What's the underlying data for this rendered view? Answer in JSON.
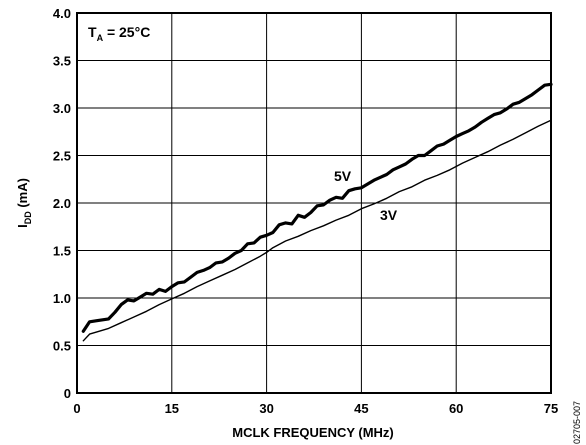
{
  "chart_data": {
    "type": "line",
    "xlabel": "MCLK FREQUENCY (MHz)",
    "ylabel": {
      "main": "I",
      "sub": "DD",
      "unit": " (mA)"
    },
    "xlim": [
      0,
      75
    ],
    "ylim": [
      0,
      4.0
    ],
    "x_ticks": [
      "0",
      "15",
      "30",
      "45",
      "60",
      "75"
    ],
    "y_ticks": [
      "0",
      "0.5",
      "1.0",
      "1.5",
      "2.0",
      "2.5",
      "3.0",
      "3.5",
      "4.0"
    ],
    "grid": true,
    "condition_label": {
      "main": "T",
      "sub": "A",
      "rest": " = 25°C"
    },
    "figure_id": "02705-007",
    "series": [
      {
        "name": "5V",
        "line_style": "thick",
        "x": [
          1,
          2,
          3,
          5,
          6,
          7,
          8,
          9,
          10,
          11,
          12,
          13,
          14,
          15,
          16,
          17,
          18,
          19,
          20,
          21,
          22,
          23,
          24,
          25,
          26,
          27,
          28,
          29,
          30,
          31,
          32,
          33,
          34,
          35,
          36,
          37,
          38,
          39,
          40,
          41,
          42,
          43,
          44,
          45,
          46,
          47,
          48,
          49,
          50,
          51,
          52,
          53,
          54,
          55,
          56,
          57,
          58,
          59,
          60,
          61,
          62,
          63,
          64,
          65,
          66,
          67,
          68,
          69,
          70,
          71,
          72,
          73,
          74,
          75
        ],
        "values": [
          0.65,
          0.75,
          0.76,
          0.78,
          0.85,
          0.93,
          0.98,
          0.97,
          1.01,
          1.05,
          1.04,
          1.09,
          1.07,
          1.12,
          1.16,
          1.17,
          1.22,
          1.27,
          1.29,
          1.32,
          1.37,
          1.38,
          1.42,
          1.47,
          1.5,
          1.57,
          1.58,
          1.64,
          1.66,
          1.69,
          1.77,
          1.79,
          1.78,
          1.87,
          1.85,
          1.9,
          1.97,
          1.98,
          2.03,
          2.06,
          2.05,
          2.13,
          2.15,
          2.16,
          2.2,
          2.24,
          2.27,
          2.3,
          2.35,
          2.38,
          2.41,
          2.46,
          2.5,
          2.5,
          2.55,
          2.6,
          2.62,
          2.66,
          2.7,
          2.73,
          2.76,
          2.8,
          2.85,
          2.89,
          2.93,
          2.95,
          2.99,
          3.04,
          3.06,
          3.1,
          3.14,
          3.19,
          3.24,
          3.25
        ]
      },
      {
        "name": "3V",
        "line_style": "thin",
        "x": [
          1,
          2,
          3,
          5,
          7,
          9,
          11,
          13,
          15,
          17,
          19,
          21,
          23,
          25,
          27,
          29,
          30,
          31,
          33,
          35,
          37,
          39,
          41,
          43,
          45,
          47,
          49,
          51,
          53,
          55,
          57,
          59,
          61,
          63,
          65,
          67,
          69,
          71,
          73,
          75
        ],
        "values": [
          0.55,
          0.62,
          0.64,
          0.68,
          0.74,
          0.8,
          0.86,
          0.93,
          0.99,
          1.05,
          1.12,
          1.18,
          1.24,
          1.3,
          1.37,
          1.44,
          1.48,
          1.53,
          1.6,
          1.65,
          1.71,
          1.76,
          1.82,
          1.87,
          1.94,
          1.99,
          2.05,
          2.12,
          2.17,
          2.24,
          2.29,
          2.35,
          2.42,
          2.48,
          2.54,
          2.61,
          2.67,
          2.74,
          2.81,
          2.87
        ]
      }
    ]
  }
}
